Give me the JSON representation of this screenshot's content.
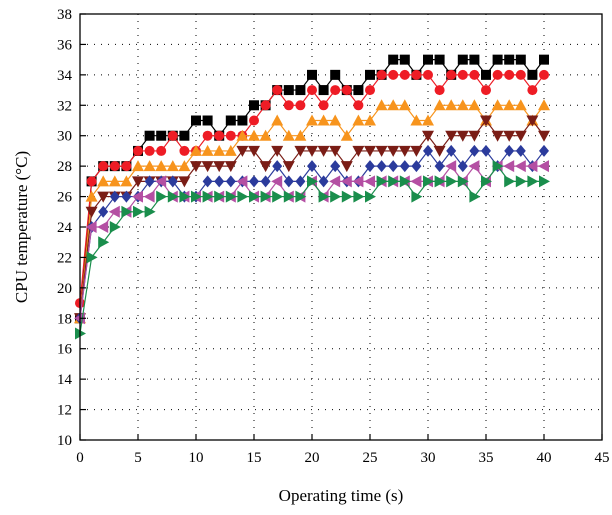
{
  "chart_data": {
    "type": "scatter",
    "xlabel": "Operating time (s)",
    "ylabel": "CPU temperature (°C)",
    "xlim": [
      0,
      45
    ],
    "ylim": [
      10,
      38
    ],
    "xticks": [
      0,
      5,
      10,
      15,
      20,
      25,
      30,
      35,
      40,
      45
    ],
    "yticks": [
      10,
      12,
      14,
      16,
      18,
      20,
      22,
      24,
      26,
      28,
      30,
      32,
      34,
      36,
      38
    ],
    "x_tick_labels": [
      "0",
      "5",
      "10",
      "15",
      "20",
      "25",
      "30",
      "35",
      "40",
      "45"
    ],
    "y_tick_labels": [
      "10",
      "12",
      "14",
      "16",
      "18",
      "20",
      "22",
      "24",
      "26",
      "28",
      "30",
      "32",
      "34",
      "36",
      "38"
    ],
    "grid": true,
    "legend": false,
    "x": [
      0,
      1,
      2,
      3,
      4,
      5,
      6,
      7,
      8,
      9,
      10,
      11,
      12,
      13,
      14,
      15,
      16,
      17,
      18,
      19,
      20,
      21,
      22,
      23,
      24,
      25,
      26,
      27,
      28,
      29,
      30,
      31,
      32,
      33,
      34,
      35,
      36,
      37,
      38,
      39,
      40
    ],
    "series": [
      {
        "marker": "square",
        "color": "#000000",
        "values": [
          18,
          27,
          28,
          28,
          28,
          29,
          30,
          30,
          30,
          30,
          31,
          31,
          30,
          31,
          31,
          32,
          32,
          33,
          33,
          33,
          34,
          33,
          34,
          33,
          33,
          34,
          34,
          35,
          35,
          34,
          35,
          35,
          34,
          35,
          35,
          34,
          35,
          35,
          35,
          34,
          35
        ]
      },
      {
        "marker": "circle",
        "color": "#ee1c25",
        "values": [
          19,
          27,
          28,
          28,
          28,
          29,
          29,
          29,
          30,
          29,
          29,
          30,
          30,
          30,
          30,
          31,
          32,
          33,
          32,
          32,
          33,
          32,
          33,
          33,
          32,
          33,
          34,
          34,
          34,
          34,
          34,
          33,
          34,
          34,
          34,
          33,
          34,
          34,
          34,
          33,
          34
        ]
      },
      {
        "marker": "triangle-up",
        "color": "#f7941d",
        "values": [
          18,
          26,
          27,
          27,
          27,
          28,
          28,
          28,
          28,
          28,
          29,
          29,
          29,
          29,
          30,
          30,
          30,
          31,
          30,
          30,
          31,
          31,
          31,
          30,
          31,
          31,
          32,
          32,
          32,
          31,
          31,
          32,
          32,
          32,
          32,
          31,
          32,
          32,
          32,
          31,
          32
        ]
      },
      {
        "marker": "triangle-down",
        "color": "#7a1d16",
        "values": [
          18,
          25,
          26,
          26,
          26,
          27,
          27,
          27,
          27,
          27,
          28,
          28,
          28,
          28,
          29,
          29,
          28,
          29,
          28,
          29,
          29,
          29,
          29,
          28,
          29,
          29,
          29,
          29,
          29,
          29,
          30,
          29,
          30,
          30,
          30,
          31,
          30,
          30,
          30,
          31,
          30
        ]
      },
      {
        "marker": "diamond",
        "color": "#2b3b9c",
        "values": [
          18,
          24,
          25,
          26,
          26,
          26,
          27,
          27,
          27,
          26,
          26,
          27,
          27,
          27,
          27,
          27,
          27,
          28,
          27,
          27,
          28,
          27,
          28,
          27,
          27,
          28,
          28,
          28,
          28,
          28,
          29,
          28,
          29,
          28,
          29,
          29,
          28,
          29,
          29,
          28,
          29
        ]
      },
      {
        "marker": "triangle-left",
        "color": "#b44fa3",
        "values": [
          18,
          24,
          24,
          25,
          25,
          26,
          26,
          27,
          26,
          26,
          26,
          26,
          26,
          26,
          27,
          26,
          26,
          27,
          26,
          26,
          27,
          26,
          27,
          27,
          27,
          27,
          27,
          27,
          27,
          27,
          27,
          27,
          28,
          27,
          28,
          27,
          28,
          28,
          28,
          28,
          28
        ]
      },
      {
        "marker": "triangle-right",
        "color": "#1a8e4c",
        "values": [
          17,
          22,
          23,
          24,
          25,
          25,
          25,
          26,
          26,
          26,
          26,
          26,
          26,
          26,
          26,
          26,
          26,
          26,
          26,
          26,
          27,
          26,
          26,
          26,
          26,
          26,
          27,
          27,
          27,
          26,
          27,
          27,
          27,
          27,
          26,
          27,
          28,
          27,
          27,
          27,
          27
        ]
      }
    ]
  }
}
